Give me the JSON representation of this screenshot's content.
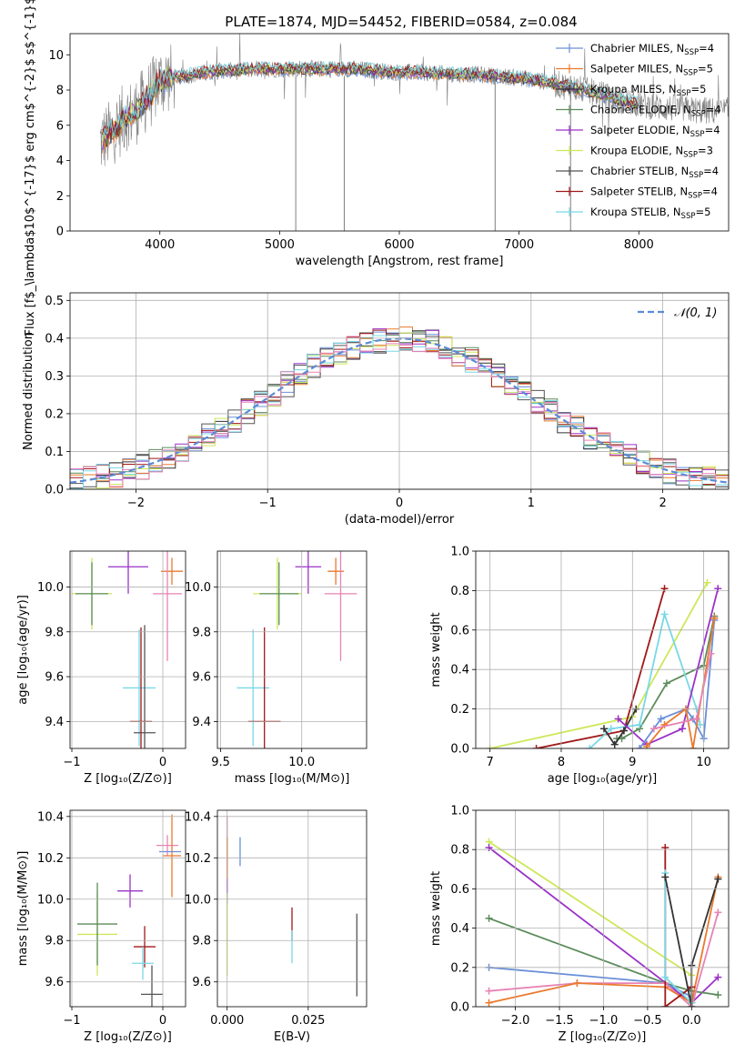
{
  "figure_title": "PLATE=1874, MJD=54452, FIBERID=0584, z=0.084",
  "colors": {
    "chabrier_miles": "#6a8fd8",
    "salpeter_miles": "#ea7a2e",
    "kroupa_miles": "#333333",
    "chabrier_elodie": "#5c8c5c",
    "salpeter_elodie": "#9a32c8",
    "kroupa_elodie": "#cde85a",
    "chabrier_stelib": "#555555",
    "salpeter_stelib": "#a01818",
    "kroupa_stelib": "#78d8e6",
    "normal": "#5b8bd6",
    "hot_pink": "#e882b4"
  },
  "chart_data": [
    {
      "id": "spectrum",
      "type": "line",
      "title": "PLATE=1874, MJD=54452, FIBERID=0584, z=0.084",
      "xlabel": "wavelength [Angstrom, rest frame]",
      "ylabel": "Flux [f$_\\lambda$10$^{-17}$ erg cm$^{-2}$ s$^{-1}$ A$^{-1}$]",
      "xlim": [
        3250,
        8750
      ],
      "ylim": [
        0,
        11.2
      ],
      "xticks": [
        "4000",
        "5000",
        "6000",
        "7000",
        "8000"
      ],
      "yticks": [
        "0",
        "2",
        "4",
        "6",
        "8",
        "10"
      ],
      "grid": false,
      "legend_position": "right",
      "legend": [
        {
          "label": "Chabrier MILES, N",
          "sub": "SSP",
          "suffix": "=4",
          "color": "#6a8fd8"
        },
        {
          "label": "Salpeter MILES, N",
          "sub": "SSP",
          "suffix": "=5",
          "color": "#ea7a2e"
        },
        {
          "label": "Kroupa MILES, N",
          "sub": "SSP",
          "suffix": "=5",
          "color": "#333333"
        },
        {
          "label": "Chabrier ELODIE, N",
          "sub": "SSP",
          "suffix": "=4",
          "color": "#5c8c5c"
        },
        {
          "label": "Salpeter ELODIE, N",
          "sub": "SSP",
          "suffix": "=4",
          "color": "#9a32c8"
        },
        {
          "label": "Kroupa ELODIE, N",
          "sub": "SSP",
          "suffix": "=3",
          "color": "#cde85a"
        },
        {
          "label": "Chabrier STELIB, N",
          "sub": "SSP",
          "suffix": "=4",
          "color": "#555555"
        },
        {
          "label": "Salpeter STELIB, N",
          "sub": "SSP",
          "suffix": "=4",
          "color": "#a01818"
        },
        {
          "label": "Kroupa STELIB, N",
          "sub": "SSP",
          "suffix": "=5",
          "color": "#78d8e6"
        }
      ],
      "data_curve": {
        "x": [
          3500,
          3550,
          3600,
          3650,
          3700,
          3750,
          3800,
          3850,
          3900,
          3950,
          4000,
          4100,
          4200,
          4300,
          4400,
          4500,
          4600,
          4800,
          5000,
          5200,
          5400,
          5600,
          5800,
          6000,
          6200,
          6400,
          6600,
          6800,
          7000,
          7200,
          7400,
          7600,
          7800,
          8000,
          8200,
          8400,
          8600,
          8700
        ],
        "y": [
          5.0,
          5.3,
          5.6,
          6.0,
          6.4,
          6.6,
          6.8,
          7.2,
          7.6,
          8.0,
          8.5,
          8.7,
          8.8,
          8.9,
          9.0,
          9.1,
          9.1,
          9.2,
          9.2,
          9.2,
          9.2,
          9.2,
          9.1,
          9.0,
          9.0,
          8.9,
          8.9,
          8.8,
          8.7,
          8.5,
          8.2,
          7.9,
          7.5,
          7.2,
          7.0,
          6.9,
          6.8,
          6.8
        ]
      },
      "dips": [
        {
          "x": 5135,
          "y": 0
        },
        {
          "x": 5540,
          "y": 0
        },
        {
          "x": 6800,
          "y": 0
        },
        {
          "x": 7430,
          "y": 0
        }
      ]
    },
    {
      "id": "residuals",
      "type": "line",
      "xlabel": "(data-model)/error",
      "ylabel": "Normed distribution",
      "xlim": [
        -2.5,
        2.5
      ],
      "ylim": [
        0,
        0.52
      ],
      "xticks": [
        "−2",
        "−1",
        "0",
        "1",
        "2"
      ],
      "yticks": [
        "0.0",
        "0.1",
        "0.2",
        "0.3",
        "0.4",
        "0.5"
      ],
      "grid": true,
      "legend_position": "top-right",
      "legend": [
        {
          "label": "𝒩(0, 1)",
          "color": "#5b8bd6"
        }
      ],
      "bin_edges_start": -2.5,
      "bin_width": 0.1
    },
    {
      "id": "Z-age",
      "type": "scatter",
      "xlabel": "Z [log₁₀(Z/Z⊙)]",
      "ylabel": "age  [log₁₀(age/yr)]",
      "xlim": [
        -1.02,
        0.25
      ],
      "ylim": [
        9.28,
        10.16
      ],
      "xticks": [
        "−1",
        "0"
      ],
      "yticks": [
        "9.4",
        "9.6",
        "9.8",
        "10.0"
      ],
      "grid": true,
      "points": [
        {
          "x": -0.78,
          "y": 9.97,
          "ex": 0.22,
          "ey": 0.16,
          "color": "#cde85a"
        },
        {
          "x": -0.78,
          "y": 9.97,
          "ex": 0.18,
          "ey": 0.14,
          "color": "#5c8c5c"
        },
        {
          "x": -0.38,
          "y": 10.09,
          "ex": 0.22,
          "ey": 0.12,
          "color": "#9a32c8"
        },
        {
          "x": 0.1,
          "y": 10.07,
          "ex": 0.12,
          "ey": 0.06,
          "color": "#ea7a2e"
        },
        {
          "x": 0.05,
          "y": 9.97,
          "ex": 0.16,
          "ey": 0.3,
          "color": "#e882b4"
        },
        {
          "x": -0.26,
          "y": 9.55,
          "ex": 0.18,
          "ey": 0.26,
          "color": "#78d8e6"
        },
        {
          "x": -0.2,
          "y": 9.35,
          "ex": 0.12,
          "ey": 0.48,
          "color": "#555555"
        },
        {
          "x": -0.24,
          "y": 9.4,
          "ex": 0.12,
          "ey": 0.42,
          "color": "#a01818"
        }
      ]
    },
    {
      "id": "mass-age",
      "type": "scatter",
      "xlabel": "mass [log₁₀(M/M⊙)]",
      "ylabel": "",
      "xlim": [
        9.48,
        10.4
      ],
      "ylim": [
        9.28,
        10.16
      ],
      "xticks": [
        "9.5",
        "10.0"
      ],
      "yticks": [
        "9.4",
        "9.6",
        "9.8",
        "10.0"
      ],
      "grid": true,
      "points": [
        {
          "x": 9.85,
          "y": 9.97,
          "ex": 0.15,
          "ey": 0.16,
          "color": "#cde85a"
        },
        {
          "x": 9.86,
          "y": 9.97,
          "ex": 0.12,
          "ey": 0.14,
          "color": "#5c8c5c"
        },
        {
          "x": 10.04,
          "y": 10.09,
          "ex": 0.08,
          "ey": 0.12,
          "color": "#9a32c8"
        },
        {
          "x": 10.21,
          "y": 10.07,
          "ex": 0.05,
          "ey": 0.06,
          "color": "#ea7a2e"
        },
        {
          "x": 10.24,
          "y": 9.97,
          "ex": 0.1,
          "ey": 0.3,
          "color": "#e882b4"
        },
        {
          "x": 9.7,
          "y": 9.55,
          "ex": 0.1,
          "ey": 0.26,
          "color": "#78d8e6"
        },
        {
          "x": 9.55,
          "y": 9.34,
          "ex": 0.0,
          "ey": 0.0,
          "color": "#555555"
        },
        {
          "x": 9.77,
          "y": 9.4,
          "ex": 0.1,
          "ey": 0.42,
          "color": "#a01818"
        }
      ]
    },
    {
      "id": "age-weight",
      "type": "line",
      "xlabel": "age  [log₁₀(age/yr)]",
      "ylabel": "mass weight",
      "xlim": [
        6.8,
        10.35
      ],
      "ylim": [
        0,
        1.0
      ],
      "xticks": [
        "7",
        "8",
        "9",
        "10"
      ],
      "yticks": [
        "0.0",
        "0.2",
        "0.4",
        "0.6",
        "0.8",
        "1.0"
      ],
      "grid": true,
      "series": [
        {
          "color": "#cde85a",
          "x": [
            7.0,
            9.0,
            10.05
          ],
          "y": [
            0.0,
            0.16,
            0.84
          ]
        },
        {
          "color": "#a01818",
          "x": [
            7.65,
            8.88,
            9.45
          ],
          "y": [
            0.0,
            0.09,
            0.81
          ]
        },
        {
          "color": "#5c8c5c",
          "x": [
            8.78,
            8.85,
            9.1,
            9.48,
            10.0,
            10.15
          ],
          "y": [
            0.05,
            0.05,
            0.1,
            0.33,
            0.42,
            0.67
          ]
        },
        {
          "color": "#78d8e6",
          "x": [
            8.4,
            8.7,
            9.1,
            9.45,
            9.9,
            9.95
          ],
          "y": [
            0.0,
            0.1,
            0.12,
            0.68,
            0.2,
            0.12
          ]
        },
        {
          "color": "#333333",
          "x": [
            8.6,
            8.75,
            8.88,
            9.05
          ],
          "y": [
            0.1,
            0.02,
            0.09,
            0.2
          ]
        },
        {
          "color": "#9a32c8",
          "x": [
            8.8,
            9.2,
            9.7,
            10.2
          ],
          "y": [
            0.15,
            0.02,
            0.1,
            0.81
          ]
        },
        {
          "color": "#6a8fd8",
          "x": [
            9.1,
            9.4,
            9.75,
            9.85,
            10.0,
            10.15
          ],
          "y": [
            0.0,
            0.15,
            0.2,
            0.15,
            0.05,
            0.65
          ]
        },
        {
          "color": "#ea7a2e",
          "x": [
            9.2,
            9.45,
            9.75,
            9.85,
            10.15
          ],
          "y": [
            0.01,
            0.12,
            0.2,
            0.0,
            0.66
          ]
        },
        {
          "color": "#e882b4",
          "x": [
            9.3,
            9.9,
            10.1
          ],
          "y": [
            0.1,
            0.15,
            0.48
          ]
        }
      ]
    },
    {
      "id": "Z-mass",
      "type": "scatter",
      "xlabel": "Z [log₁₀(Z/Z⊙)]",
      "ylabel": "mass [log₁₀(M/M⊙)]",
      "xlim": [
        -1.02,
        0.25
      ],
      "ylim": [
        9.48,
        10.43
      ],
      "xticks": [
        "−1",
        "0"
      ],
      "yticks": [
        "9.6",
        "9.8",
        "10.0",
        "10.2",
        "10.4"
      ],
      "grid": true,
      "points": [
        {
          "x": -0.72,
          "y": 9.83,
          "ex": 0.22,
          "ey": 0.2,
          "color": "#cde85a"
        },
        {
          "x": -0.72,
          "y": 9.88,
          "ex": 0.22,
          "ey": 0.2,
          "color": "#5c8c5c"
        },
        {
          "x": -0.36,
          "y": 10.04,
          "ex": 0.14,
          "ey": 0.08,
          "color": "#9a32c8"
        },
        {
          "x": 0.05,
          "y": 10.26,
          "ex": 0.12,
          "ey": 0.05,
          "color": "#e882b4"
        },
        {
          "x": 0.1,
          "y": 10.21,
          "ex": 0.1,
          "ey": 0.2,
          "color": "#ea7a2e"
        },
        {
          "x": 0.08,
          "y": 10.23,
          "ex": 0.12,
          "ey": 0.0,
          "color": "#6a8fd8"
        },
        {
          "x": -0.2,
          "y": 9.77,
          "ex": 0.12,
          "ey": 0.1,
          "color": "#a01818"
        },
        {
          "x": -0.22,
          "y": 9.69,
          "ex": 0.12,
          "ey": 0.08,
          "color": "#78d8e6"
        },
        {
          "x": -0.12,
          "y": 9.54,
          "ex": 0.12,
          "ey": 0.14,
          "color": "#555555"
        }
      ]
    },
    {
      "id": "ebv-mass",
      "type": "scatter",
      "xlabel": "E(B-V)",
      "ylabel": "",
      "xlim": [
        -0.003,
        0.043
      ],
      "ylim": [
        9.48,
        10.43
      ],
      "xticks": [
        "0.000",
        "0.025"
      ],
      "yticks": [
        "9.6",
        "9.8",
        "10.0",
        "10.2",
        "10.4"
      ],
      "grid": true,
      "points": [
        {
          "x": 0.0,
          "y": 10.25,
          "ex": 0,
          "ey": 0.15,
          "color": "#e882b4"
        },
        {
          "x": 0.0,
          "y": 10.2,
          "ex": 0,
          "ey": 0.1,
          "color": "#ea7a2e"
        },
        {
          "x": 0.004,
          "y": 10.23,
          "ex": 0,
          "ey": 0.07,
          "color": "#6a8fd8"
        },
        {
          "x": 0.0,
          "y": 10.04,
          "ex": 0,
          "ey": 0.06,
          "color": "#9a32c8"
        },
        {
          "x": 0.0,
          "y": 9.83,
          "ex": 0,
          "ey": 0.2,
          "color": "#cde85a"
        },
        {
          "x": 0.02,
          "y": 9.88,
          "ex": 0,
          "ey": 0.08,
          "color": "#a01818"
        },
        {
          "x": 0.02,
          "y": 9.77,
          "ex": 0,
          "ey": 0.08,
          "color": "#78d8e6"
        },
        {
          "x": 0.04,
          "y": 9.73,
          "ex": 0,
          "ey": 0.2,
          "color": "#555555"
        }
      ]
    },
    {
      "id": "Z-weight",
      "type": "line",
      "xlabel": "Z [log₁₀(Z/Z⊙)]",
      "ylabel": "mass weight",
      "xlim": [
        -2.45,
        0.42
      ],
      "ylim": [
        0,
        1.0
      ],
      "xticks": [
        "−2.0",
        "−1.5",
        "−1.0",
        "−0.5",
        "0.0"
      ],
      "yticks": [
        "0.0",
        "0.2",
        "0.4",
        "0.6",
        "0.8",
        "1.0"
      ],
      "grid": true,
      "series": [
        {
          "color": "#cde85a",
          "x": [
            -2.3,
            0.0
          ],
          "y": [
            0.84,
            0.16
          ]
        },
        {
          "color": "#9a32c8",
          "x": [
            -2.3,
            0.0,
            0.3
          ],
          "y": [
            0.81,
            0.02,
            0.15
          ]
        },
        {
          "color": "#5c8c5c",
          "x": [
            -2.3,
            -0.3,
            0.0,
            0.3
          ],
          "y": [
            0.45,
            0.12,
            0.08,
            0.06
          ]
        },
        {
          "color": "#6a8fd8",
          "x": [
            -2.3,
            -0.3,
            0.0
          ],
          "y": [
            0.2,
            0.12,
            0.05
          ]
        },
        {
          "color": "#e882b4",
          "x": [
            -2.3,
            -1.3,
            -0.3,
            0.0,
            0.3
          ],
          "y": [
            0.08,
            0.12,
            0.12,
            0.0,
            0.48
          ]
        },
        {
          "color": "#ea7a2e",
          "x": [
            -2.3,
            -1.3,
            -0.3,
            0.0,
            0.3
          ],
          "y": [
            0.02,
            0.12,
            0.1,
            0.02,
            0.66
          ]
        },
        {
          "color": "#a01818",
          "x": [
            -0.3,
            -0.3,
            0.0
          ],
          "y": [
            0.81,
            0.0,
            0.1
          ]
        },
        {
          "color": "#78d8e6",
          "x": [
            -0.3,
            -0.3,
            0.0
          ],
          "y": [
            0.68,
            0.15,
            0.02
          ]
        },
        {
          "color": "#333333",
          "x": [
            -0.3,
            0.0,
            0.0,
            0.3
          ],
          "y": [
            0.66,
            0.0,
            0.21,
            0.65
          ]
        }
      ]
    }
  ]
}
